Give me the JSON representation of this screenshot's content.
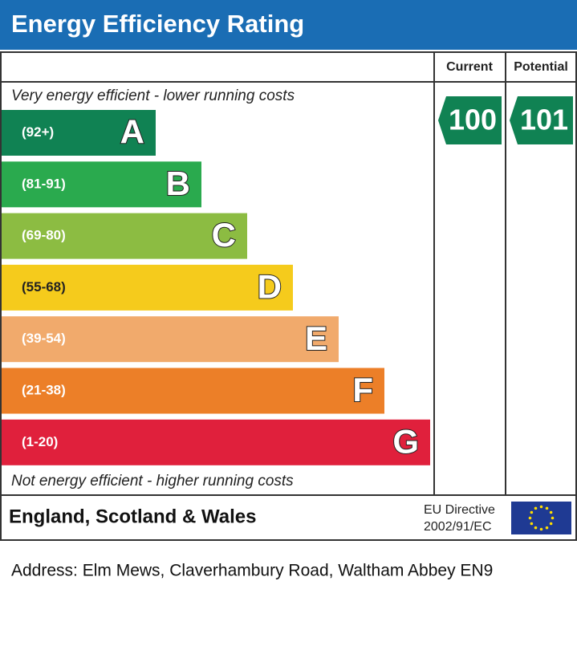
{
  "header": {
    "title": "Energy Efficiency Rating"
  },
  "columns": [
    "Current",
    "Potential"
  ],
  "top_note": "Very energy efficient - lower running costs",
  "bottom_note": "Not energy efficient - higher running costs",
  "bands": [
    {
      "range": "(92+)",
      "letter": "A",
      "color": "#108253"
    },
    {
      "range": "(81-91)",
      "letter": "B",
      "color": "#2aaa4e"
    },
    {
      "range": "(69-80)",
      "letter": "C",
      "color": "#8cbc42"
    },
    {
      "range": "(55-68)",
      "letter": "D",
      "color": "#f5cb1c"
    },
    {
      "range": "(39-54)",
      "letter": "E",
      "color": "#f1aa6c"
    },
    {
      "range": "(21-38)",
      "letter": "F",
      "color": "#ec7f28"
    },
    {
      "range": "(1-20)",
      "letter": "G",
      "color": "#e0203c"
    }
  ],
  "ratings": [
    {
      "value": 100,
      "color": "#108253"
    },
    {
      "value": 101,
      "color": "#108253"
    }
  ],
  "footer": {
    "region": "England, Scotland & Wales",
    "directive": [
      "EU Directive",
      "2002/91/EC"
    ]
  },
  "address": "Address: Elm Mews, Claverhambury Road, Waltham Abbey EN9"
}
